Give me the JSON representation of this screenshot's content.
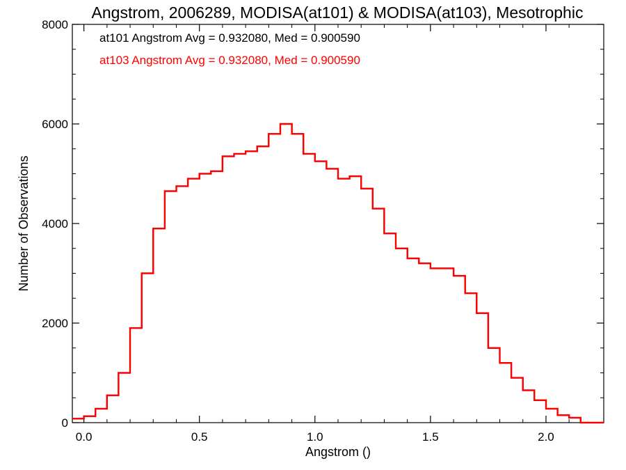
{
  "chart_data": {
    "type": "line",
    "title": "Angstrom, 2006289, MODISA(at101) & MODISA(at103), Mesotrophic",
    "xlabel": "Angstrom ()",
    "ylabel": "Number of Observations",
    "xlim": [
      -0.05,
      2.25
    ],
    "ylim": [
      0,
      8000
    ],
    "x_ticks": [
      0.0,
      0.5,
      1.0,
      1.5,
      2.0
    ],
    "x_tick_labels": [
      "0.0",
      "0.5",
      "1.0",
      "1.5",
      "2.0"
    ],
    "y_ticks": [
      0,
      2000,
      4000,
      6000,
      8000
    ],
    "y_tick_labels": [
      "0",
      "2000",
      "4000",
      "6000",
      "8000"
    ],
    "grid": false,
    "legend_position": "top-left",
    "annotations": [
      {
        "text": "at101 Angstrom Avg = 0.932080, Med = 0.900590",
        "color": "#000000"
      },
      {
        "text": "at103 Angstrom Avg = 0.932080, Med = 0.900590",
        "color": "#ff0000"
      }
    ],
    "step_histogram": true,
    "x": [
      -0.05,
      0.0,
      0.05,
      0.1,
      0.15,
      0.2,
      0.25,
      0.3,
      0.35,
      0.4,
      0.45,
      0.5,
      0.55,
      0.6,
      0.65,
      0.7,
      0.75,
      0.8,
      0.85,
      0.9,
      0.95,
      1.0,
      1.05,
      1.1,
      1.15,
      1.2,
      1.25,
      1.3,
      1.35,
      1.4,
      1.45,
      1.5,
      1.55,
      1.6,
      1.65,
      1.7,
      1.75,
      1.8,
      1.85,
      1.9,
      1.95,
      2.0,
      2.05,
      2.1,
      2.15,
      2.2,
      2.25
    ],
    "series": [
      {
        "name": "at101",
        "color": "#000000",
        "values": [
          80,
          130,
          280,
          550,
          1000,
          1900,
          3000,
          3900,
          4650,
          4750,
          4900,
          5000,
          5050,
          5350,
          5400,
          5450,
          5550,
          5800,
          6000,
          5800,
          5400,
          5250,
          5100,
          4900,
          4950,
          4700,
          4300,
          3800,
          3500,
          3300,
          3200,
          3100,
          3100,
          2950,
          2600,
          2200,
          1500,
          1200,
          900,
          650,
          450,
          280,
          150,
          100,
          0,
          0,
          0
        ]
      },
      {
        "name": "at103",
        "color": "#ff0000",
        "values": [
          80,
          130,
          280,
          550,
          1000,
          1900,
          3000,
          3900,
          4650,
          4750,
          4900,
          5000,
          5050,
          5350,
          5400,
          5450,
          5550,
          5800,
          6000,
          5800,
          5400,
          5250,
          5100,
          4900,
          4950,
          4700,
          4300,
          3800,
          3500,
          3300,
          3200,
          3100,
          3100,
          2950,
          2600,
          2200,
          1500,
          1200,
          900,
          650,
          450,
          280,
          150,
          100,
          0,
          0,
          0
        ]
      }
    ]
  }
}
